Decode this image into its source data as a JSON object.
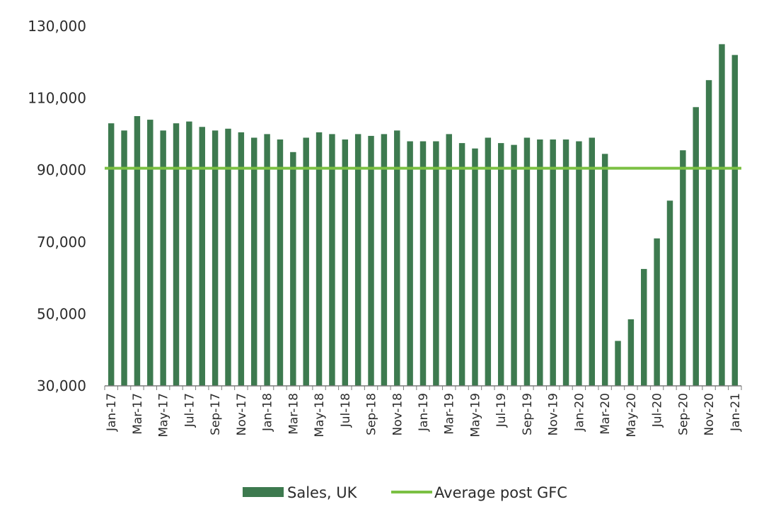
{
  "chart_data": {
    "type": "bar",
    "title": "",
    "xlabel": "",
    "ylabel": "",
    "ylim": [
      30000,
      130000
    ],
    "yticks": [
      "30,000",
      "50,000",
      "70,000",
      "90,000",
      "110,000",
      "130,000"
    ],
    "ytick_values": [
      30000,
      50000,
      70000,
      90000,
      110000,
      130000
    ],
    "categories": [
      "Jan-17",
      "Feb-17",
      "Mar-17",
      "Apr-17",
      "May-17",
      "Jun-17",
      "Jul-17",
      "Aug-17",
      "Sep-17",
      "Oct-17",
      "Nov-17",
      "Dec-17",
      "Jan-18",
      "Feb-18",
      "Mar-18",
      "Apr-18",
      "May-18",
      "Jun-18",
      "Jul-18",
      "Aug-18",
      "Sep-18",
      "Oct-18",
      "Nov-18",
      "Dec-18",
      "Jan-19",
      "Feb-19",
      "Mar-19",
      "Apr-19",
      "May-19",
      "Jun-19",
      "Jul-19",
      "Aug-19",
      "Sep-19",
      "Oct-19",
      "Nov-19",
      "Dec-19",
      "Jan-20",
      "Feb-20",
      "Mar-20",
      "Apr-20",
      "May-20",
      "Jun-20",
      "Jul-20",
      "Aug-20",
      "Sep-20",
      "Oct-20",
      "Nov-20",
      "Dec-20",
      "Jan-21"
    ],
    "xtick_labels": [
      "Jan-17",
      "Mar-17",
      "May-17",
      "Jul-17",
      "Sep-17",
      "Nov-17",
      "Jan-18",
      "Mar-18",
      "May-18",
      "Jul-18",
      "Sep-18",
      "Nov-18",
      "Jan-19",
      "Mar-19",
      "May-19",
      "Jul-19",
      "Sep-19",
      "Nov-19",
      "Jan-20",
      "Mar-20",
      "May-20",
      "Jul-20",
      "Sep-20",
      "Nov-20",
      "Jan-21"
    ],
    "series": [
      {
        "name": "Sales, UK",
        "type": "bar",
        "color": "#3d7a4f",
        "values": [
          103000,
          101000,
          105000,
          104000,
          101000,
          103000,
          103500,
          102000,
          101000,
          101500,
          100500,
          99000,
          100000,
          98500,
          95000,
          99000,
          100500,
          100000,
          98500,
          100000,
          99500,
          100000,
          101000,
          98000,
          98000,
          98000,
          100000,
          97500,
          96000,
          99000,
          97500,
          97000,
          99000,
          98500,
          98500,
          98500,
          98000,
          99000,
          94500,
          42500,
          48500,
          62500,
          71000,
          81500,
          95500,
          107500,
          115000,
          125000,
          122000
        ]
      },
      {
        "name": "Average post GFC",
        "type": "line",
        "color": "#7bc043",
        "value": 90500
      }
    ],
    "legend": {
      "position": "bottom",
      "entries": [
        "Sales, UK",
        "Average post GFC"
      ]
    },
    "grid": false
  }
}
